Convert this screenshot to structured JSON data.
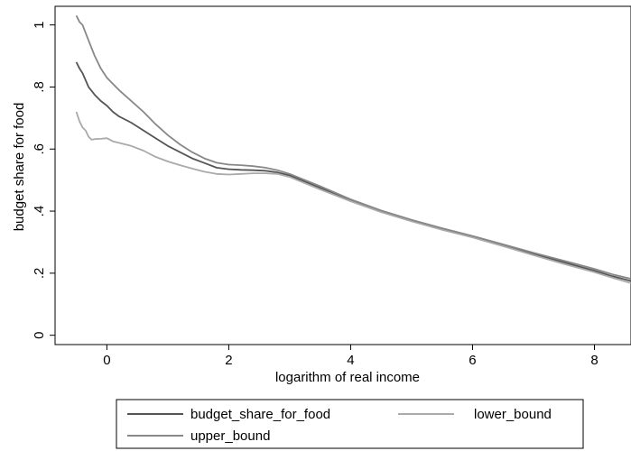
{
  "chart_data": {
    "type": "line",
    "title": "",
    "xlabel": "logarithm of real income",
    "ylabel": "budget share for food",
    "xlim": [
      -0.85,
      8.6
    ],
    "ylim": [
      -0.03,
      1.06
    ],
    "xticks": [
      0,
      2,
      4,
      6,
      8
    ],
    "xtick_labels": [
      "0",
      "2",
      "4",
      "6",
      "8"
    ],
    "yticks": [
      0,
      0.2,
      0.4,
      0.6,
      0.8,
      1
    ],
    "ytick_labels": [
      "0",
      ".2",
      ".4",
      ".6",
      ".8",
      "1"
    ],
    "grid": false,
    "legend_position": "bottom",
    "series": [
      {
        "name": "budget_share_for_food",
        "color": "#555555",
        "x": [
          -0.5,
          -0.45,
          -0.4,
          -0.3,
          -0.2,
          -0.1,
          0,
          0.1,
          0.2,
          0.4,
          0.6,
          0.8,
          1,
          1.2,
          1.4,
          1.6,
          1.8,
          2,
          2.2,
          2.4,
          2.6,
          2.8,
          3,
          3.5,
          4,
          4.5,
          5,
          5.5,
          6,
          6.5,
          7,
          7.5,
          8,
          8.3,
          8.6
        ],
        "y": [
          0.88,
          0.86,
          0.845,
          0.8,
          0.775,
          0.755,
          0.74,
          0.72,
          0.705,
          0.685,
          0.66,
          0.635,
          0.61,
          0.59,
          0.57,
          0.555,
          0.54,
          0.535,
          0.533,
          0.532,
          0.53,
          0.525,
          0.515,
          0.475,
          0.435,
          0.4,
          0.37,
          0.343,
          0.318,
          0.29,
          0.262,
          0.235,
          0.208,
          0.19,
          0.175
        ]
      },
      {
        "name": "lower_bound",
        "color": "#aaaaaa",
        "x": [
          -0.5,
          -0.45,
          -0.4,
          -0.35,
          -0.3,
          -0.25,
          -0.2,
          -0.1,
          0,
          0.1,
          0.2,
          0.4,
          0.6,
          0.8,
          1,
          1.2,
          1.4,
          1.6,
          1.8,
          2,
          2.2,
          2.4,
          2.6,
          2.8,
          3,
          3.5,
          4,
          4.5,
          5,
          5.5,
          6,
          6.5,
          7,
          7.5,
          8,
          8.3,
          8.6
        ],
        "y": [
          0.72,
          0.69,
          0.67,
          0.66,
          0.64,
          0.63,
          0.632,
          0.633,
          0.635,
          0.625,
          0.62,
          0.61,
          0.595,
          0.575,
          0.56,
          0.548,
          0.537,
          0.527,
          0.52,
          0.518,
          0.52,
          0.522,
          0.522,
          0.52,
          0.51,
          0.47,
          0.432,
          0.397,
          0.367,
          0.34,
          0.315,
          0.287,
          0.258,
          0.23,
          0.203,
          0.185,
          0.168
        ]
      },
      {
        "name": "upper_bound",
        "color": "#888888",
        "x": [
          -0.5,
          -0.45,
          -0.4,
          -0.3,
          -0.2,
          -0.1,
          0,
          0.1,
          0.2,
          0.4,
          0.6,
          0.8,
          1,
          1.2,
          1.4,
          1.6,
          1.8,
          2,
          2.2,
          2.4,
          2.6,
          2.8,
          3,
          3.5,
          4,
          4.5,
          5,
          5.5,
          6,
          6.5,
          7,
          7.5,
          8,
          8.3,
          8.6
        ],
        "y": [
          1.03,
          1.01,
          1.0,
          0.95,
          0.9,
          0.86,
          0.83,
          0.81,
          0.79,
          0.755,
          0.72,
          0.68,
          0.645,
          0.615,
          0.59,
          0.57,
          0.556,
          0.55,
          0.548,
          0.545,
          0.54,
          0.532,
          0.52,
          0.48,
          0.438,
          0.402,
          0.372,
          0.345,
          0.32,
          0.293,
          0.266,
          0.24,
          0.214,
          0.196,
          0.182
        ]
      }
    ]
  }
}
